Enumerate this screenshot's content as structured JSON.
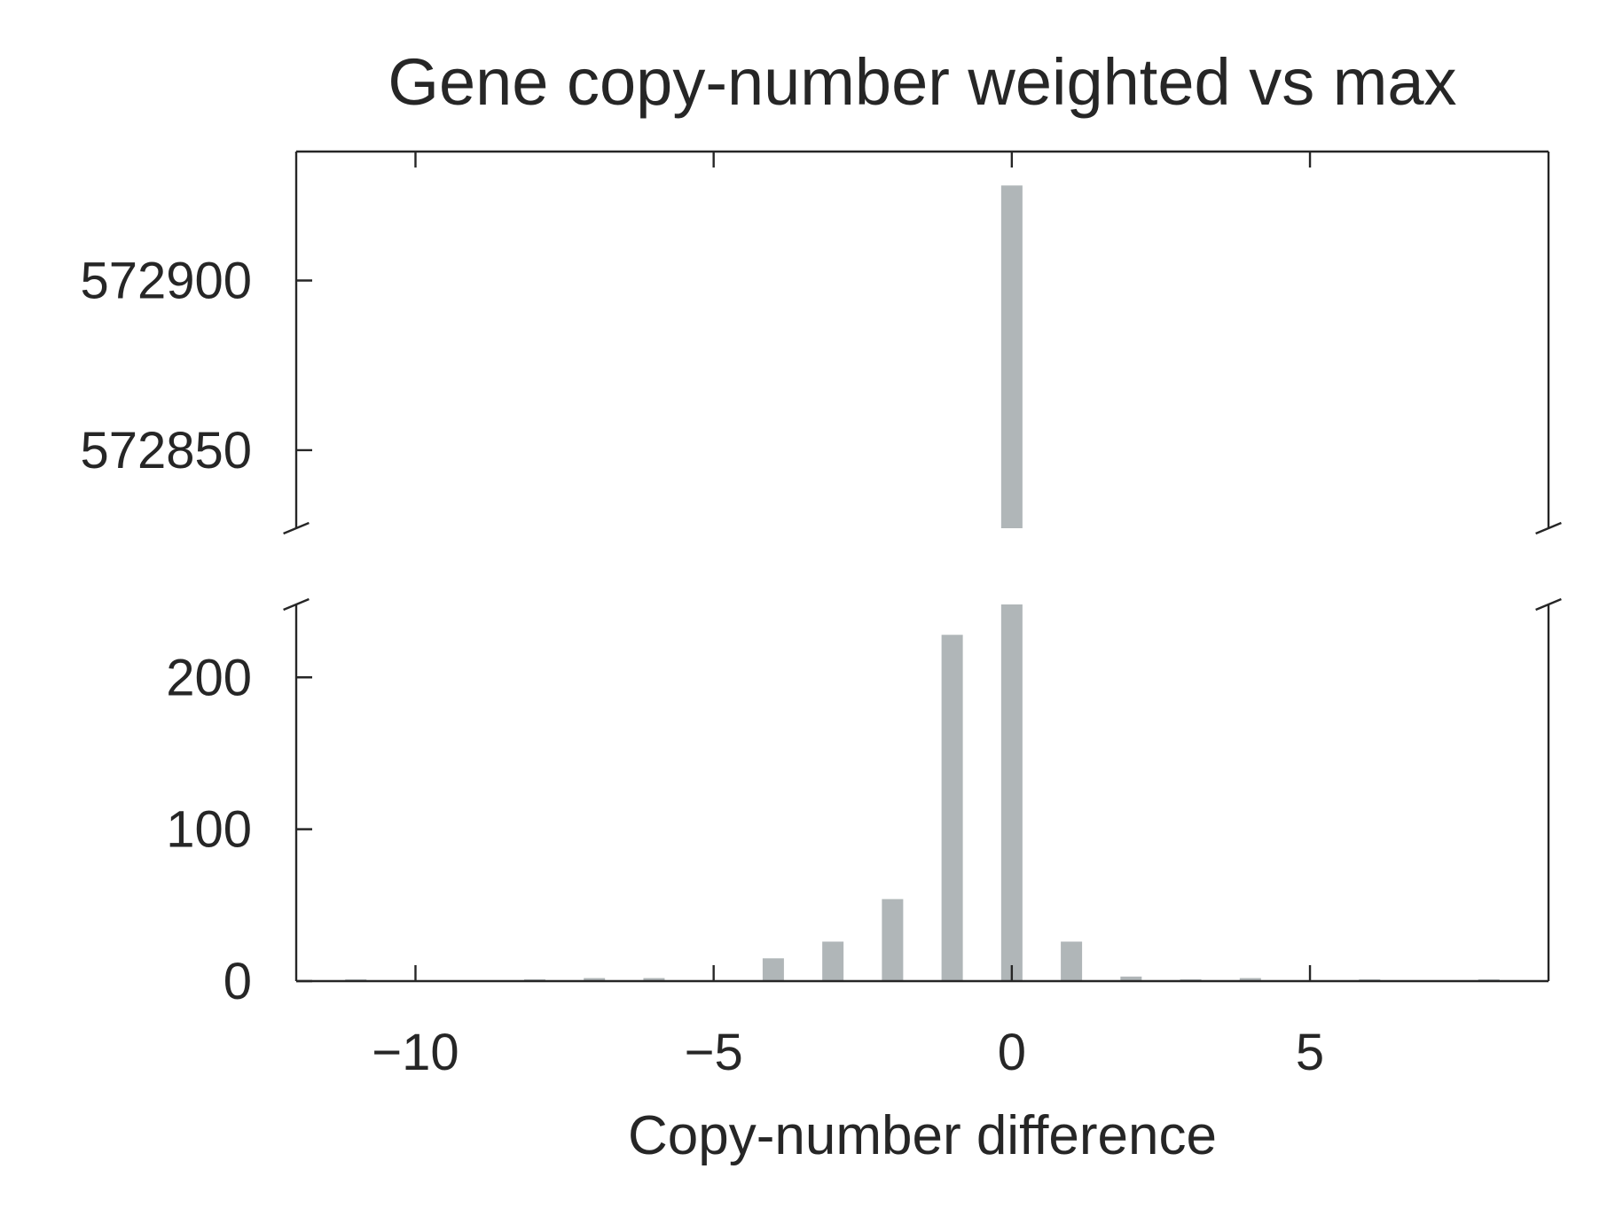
{
  "chart_data": {
    "type": "bar",
    "title": "Gene copy-number weighted vs max",
    "xlabel": "Copy-number difference",
    "ylabel": "",
    "broken_y_axis": true,
    "xlim": [
      -12,
      9
    ],
    "x_ticks": [
      -10,
      -5,
      0,
      5
    ],
    "x_tick_labels": [
      "−10",
      "−5",
      "0",
      "5"
    ],
    "upper_panel": {
      "ylim": [
        572827,
        572938
      ],
      "y_ticks": [
        572850,
        572900
      ],
      "y_tick_labels": [
        "572850",
        "572900"
      ]
    },
    "lower_panel": {
      "ylim": [
        0,
        248
      ],
      "y_ticks": [
        0,
        100,
        200
      ],
      "y_tick_labels": [
        "0",
        "100",
        "200"
      ]
    },
    "bar_color": "#b0b6b8",
    "bars": [
      {
        "x": -11,
        "value": 1
      },
      {
        "x": -8,
        "value": 1
      },
      {
        "x": -7,
        "value": 2
      },
      {
        "x": -6,
        "value": 2
      },
      {
        "x": -4,
        "value": 15
      },
      {
        "x": -3,
        "value": 26
      },
      {
        "x": -2,
        "value": 54
      },
      {
        "x": -1,
        "value": 228
      },
      {
        "x": 0,
        "value": 572928
      },
      {
        "x": 1,
        "value": 26
      },
      {
        "x": 2,
        "value": 3
      },
      {
        "x": 3,
        "value": 1
      },
      {
        "x": 4,
        "value": 2
      },
      {
        "x": 6,
        "value": 1
      },
      {
        "x": 8,
        "value": 1
      }
    ]
  }
}
